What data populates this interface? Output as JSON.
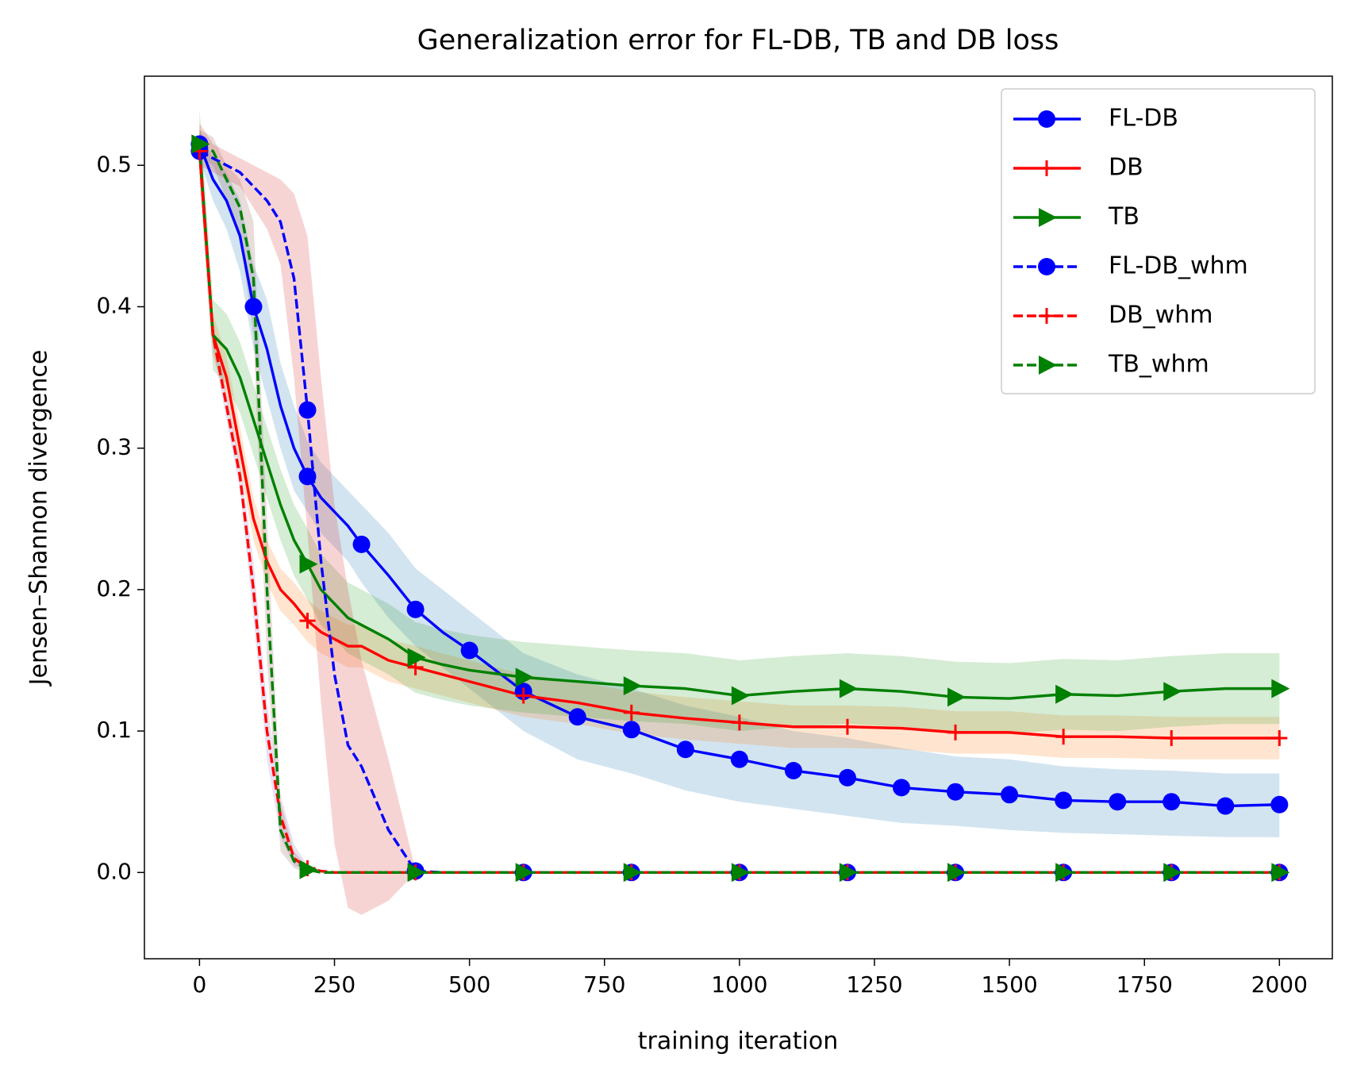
{
  "chart_data": {
    "type": "line",
    "title": "Generalization error for FL-DB, TB and DB loss",
    "xlabel": "training iteration",
    "ylabel": "Jensen–Shannon divergence",
    "xlim": [
      -102,
      2098
    ],
    "ylim": [
      -0.061,
      0.563
    ],
    "xticks": [
      0,
      250,
      500,
      750,
      1000,
      1250,
      1500,
      1750,
      2000
    ],
    "yticks": [
      {
        "value": 0,
        "label": "0.0"
      },
      0.1,
      0.2,
      0.3,
      0.4,
      0.5
    ],
    "grid": false,
    "legend": "upper right",
    "x": [
      0,
      25,
      50,
      75,
      100,
      125,
      150,
      175,
      200,
      225,
      250,
      275,
      300,
      350,
      400,
      450,
      500,
      600,
      700,
      800,
      900,
      1000,
      1100,
      1200,
      1300,
      1400,
      1500,
      1600,
      1700,
      1800,
      1900,
      2000
    ],
    "series": [
      {
        "name": "FL-DB",
        "color": "#0000ff",
        "dashed": false,
        "marker": "circle",
        "markevery": 100,
        "band_color": "#1f77b4",
        "values": [
          0.515,
          0.49,
          0.475,
          0.45,
          0.4,
          0.37,
          0.33,
          0.3,
          0.28,
          0.265,
          0.255,
          0.245,
          0.232,
          0.21,
          0.186,
          0.17,
          0.157,
          0.128,
          0.11,
          0.101,
          0.087,
          0.08,
          0.072,
          0.067,
          0.06,
          0.057,
          0.055,
          0.051,
          0.05,
          0.05,
          0.047,
          0.048
        ],
        "lower": [
          0.505,
          0.475,
          0.455,
          0.425,
          0.37,
          0.335,
          0.3,
          0.27,
          0.255,
          0.24,
          0.23,
          0.22,
          0.205,
          0.18,
          0.16,
          0.145,
          0.13,
          0.1,
          0.08,
          0.07,
          0.058,
          0.05,
          0.045,
          0.04,
          0.035,
          0.033,
          0.03,
          0.028,
          0.027,
          0.026,
          0.025,
          0.025
        ],
        "upper": [
          0.525,
          0.505,
          0.495,
          0.475,
          0.43,
          0.405,
          0.36,
          0.33,
          0.305,
          0.29,
          0.28,
          0.27,
          0.26,
          0.24,
          0.215,
          0.2,
          0.185,
          0.155,
          0.14,
          0.13,
          0.118,
          0.11,
          0.1,
          0.095,
          0.088,
          0.082,
          0.08,
          0.075,
          0.073,
          0.072,
          0.07,
          0.07
        ]
      },
      {
        "name": "DB",
        "color": "#ff0000",
        "dashed": false,
        "marker": "plus",
        "markevery": 200,
        "band_color": "#ff7f0e",
        "values": [
          0.51,
          0.38,
          0.35,
          0.3,
          0.25,
          0.22,
          0.2,
          0.19,
          0.178,
          0.17,
          0.165,
          0.16,
          0.16,
          0.15,
          0.145,
          0.14,
          0.135,
          0.125,
          0.12,
          0.113,
          0.109,
          0.106,
          0.103,
          0.103,
          0.102,
          0.099,
          0.099,
          0.096,
          0.096,
          0.095,
          0.095,
          0.095
        ],
        "lower": [
          0.495,
          0.365,
          0.335,
          0.285,
          0.235,
          0.205,
          0.185,
          0.175,
          0.163,
          0.155,
          0.15,
          0.145,
          0.145,
          0.135,
          0.13,
          0.125,
          0.12,
          0.11,
          0.105,
          0.098,
          0.094,
          0.091,
          0.088,
          0.088,
          0.087,
          0.084,
          0.084,
          0.081,
          0.081,
          0.08,
          0.08,
          0.08
        ],
        "upper": [
          0.525,
          0.395,
          0.365,
          0.315,
          0.265,
          0.235,
          0.215,
          0.205,
          0.193,
          0.185,
          0.18,
          0.175,
          0.175,
          0.165,
          0.16,
          0.155,
          0.15,
          0.14,
          0.135,
          0.128,
          0.124,
          0.121,
          0.118,
          0.118,
          0.117,
          0.114,
          0.114,
          0.111,
          0.111,
          0.11,
          0.11,
          0.11
        ]
      },
      {
        "name": "TB",
        "color": "#008000",
        "dashed": false,
        "marker": "triangle",
        "markevery": 200,
        "band_color": "#2ca02c",
        "values": [
          0.515,
          0.38,
          0.37,
          0.35,
          0.32,
          0.29,
          0.26,
          0.235,
          0.218,
          0.2,
          0.19,
          0.18,
          0.175,
          0.165,
          0.152,
          0.147,
          0.143,
          0.138,
          0.135,
          0.132,
          0.13,
          0.125,
          0.128,
          0.13,
          0.128,
          0.124,
          0.123,
          0.126,
          0.125,
          0.128,
          0.13,
          0.13
        ],
        "lower": [
          0.49,
          0.355,
          0.345,
          0.325,
          0.295,
          0.265,
          0.235,
          0.21,
          0.193,
          0.175,
          0.165,
          0.155,
          0.15,
          0.14,
          0.127,
          0.122,
          0.118,
          0.113,
          0.11,
          0.107,
          0.105,
          0.1,
          0.103,
          0.105,
          0.103,
          0.099,
          0.098,
          0.101,
          0.1,
          0.103,
          0.105,
          0.105
        ],
        "upper": [
          0.54,
          0.405,
          0.395,
          0.375,
          0.345,
          0.315,
          0.285,
          0.26,
          0.243,
          0.225,
          0.215,
          0.205,
          0.2,
          0.19,
          0.177,
          0.172,
          0.168,
          0.163,
          0.16,
          0.157,
          0.155,
          0.15,
          0.153,
          0.155,
          0.153,
          0.149,
          0.148,
          0.151,
          0.15,
          0.153,
          0.155,
          0.155
        ]
      },
      {
        "name": "FL-DB_whm",
        "color": "#0000ff",
        "dashed": true,
        "marker": "circle",
        "markevery": 200,
        "band_color": "#d62728",
        "values": [
          0.51,
          0.505,
          0.5,
          0.495,
          0.485,
          0.475,
          0.46,
          0.42,
          0.327,
          0.22,
          0.14,
          0.09,
          0.075,
          0.03,
          0.001,
          0,
          0,
          0,
          0,
          0,
          0,
          0,
          0,
          0,
          0,
          0,
          0,
          0,
          0,
          0,
          0,
          0
        ],
        "lower": [
          0.5,
          0.495,
          0.49,
          0.485,
          0.47,
          0.455,
          0.43,
          0.35,
          0.24,
          0.12,
          0.02,
          -0.025,
          -0.03,
          -0.02,
          0,
          0,
          0,
          0,
          0,
          0,
          0,
          0,
          0,
          0,
          0,
          0,
          0,
          0,
          0,
          0,
          0,
          0
        ],
        "upper": [
          0.53,
          0.515,
          0.51,
          0.505,
          0.5,
          0.495,
          0.49,
          0.48,
          0.45,
          0.35,
          0.26,
          0.2,
          0.15,
          0.08,
          0.002,
          0,
          0,
          0,
          0,
          0,
          0,
          0,
          0,
          0,
          0,
          0,
          0,
          0,
          0,
          0,
          0,
          0
        ]
      },
      {
        "name": "DB_whm",
        "color": "#ff0000",
        "dashed": true,
        "marker": "plus",
        "markevery": 200,
        "band_color": "#9467bd",
        "values": [
          0.51,
          0.38,
          0.33,
          0.28,
          0.2,
          0.1,
          0.04,
          0.01,
          0.003,
          0.001,
          0,
          0,
          0,
          0,
          0,
          0,
          0,
          0,
          0,
          0,
          0,
          0,
          0,
          0,
          0,
          0,
          0,
          0,
          0,
          0,
          0,
          0
        ],
        "lower": [
          0.5,
          0.37,
          0.32,
          0.27,
          0.18,
          0.08,
          0.025,
          0.005,
          0.001,
          0,
          0,
          0,
          0,
          0,
          0,
          0,
          0,
          0,
          0,
          0,
          0,
          0,
          0,
          0,
          0,
          0,
          0,
          0,
          0,
          0,
          0,
          0
        ],
        "upper": [
          0.52,
          0.39,
          0.34,
          0.29,
          0.22,
          0.12,
          0.055,
          0.02,
          0.005,
          0.002,
          0,
          0,
          0,
          0,
          0,
          0,
          0,
          0,
          0,
          0,
          0,
          0,
          0,
          0,
          0,
          0,
          0,
          0,
          0,
          0,
          0,
          0
        ]
      },
      {
        "name": "TB_whm",
        "color": "#008000",
        "dashed": true,
        "marker": "triangle",
        "markevery": 200,
        "band_color": "#8c564b",
        "values": [
          0.515,
          0.51,
          0.49,
          0.47,
          0.42,
          0.2,
          0.03,
          0.008,
          0.002,
          0,
          0,
          0,
          0,
          0,
          0,
          0,
          0,
          0,
          0,
          0,
          0,
          0,
          0,
          0,
          0,
          0,
          0,
          0,
          0,
          0,
          0,
          0
        ],
        "lower": [
          0.505,
          0.5,
          0.475,
          0.45,
          0.38,
          0.15,
          0.015,
          0.003,
          0,
          0,
          0,
          0,
          0,
          0,
          0,
          0,
          0,
          0,
          0,
          0,
          0,
          0,
          0,
          0,
          0,
          0,
          0,
          0,
          0,
          0,
          0,
          0
        ],
        "upper": [
          0.525,
          0.52,
          0.5,
          0.49,
          0.46,
          0.25,
          0.05,
          0.015,
          0.004,
          0,
          0,
          0,
          0,
          0,
          0,
          0,
          0,
          0,
          0,
          0,
          0,
          0,
          0,
          0,
          0,
          0,
          0,
          0,
          0,
          0,
          0,
          0
        ]
      }
    ]
  }
}
